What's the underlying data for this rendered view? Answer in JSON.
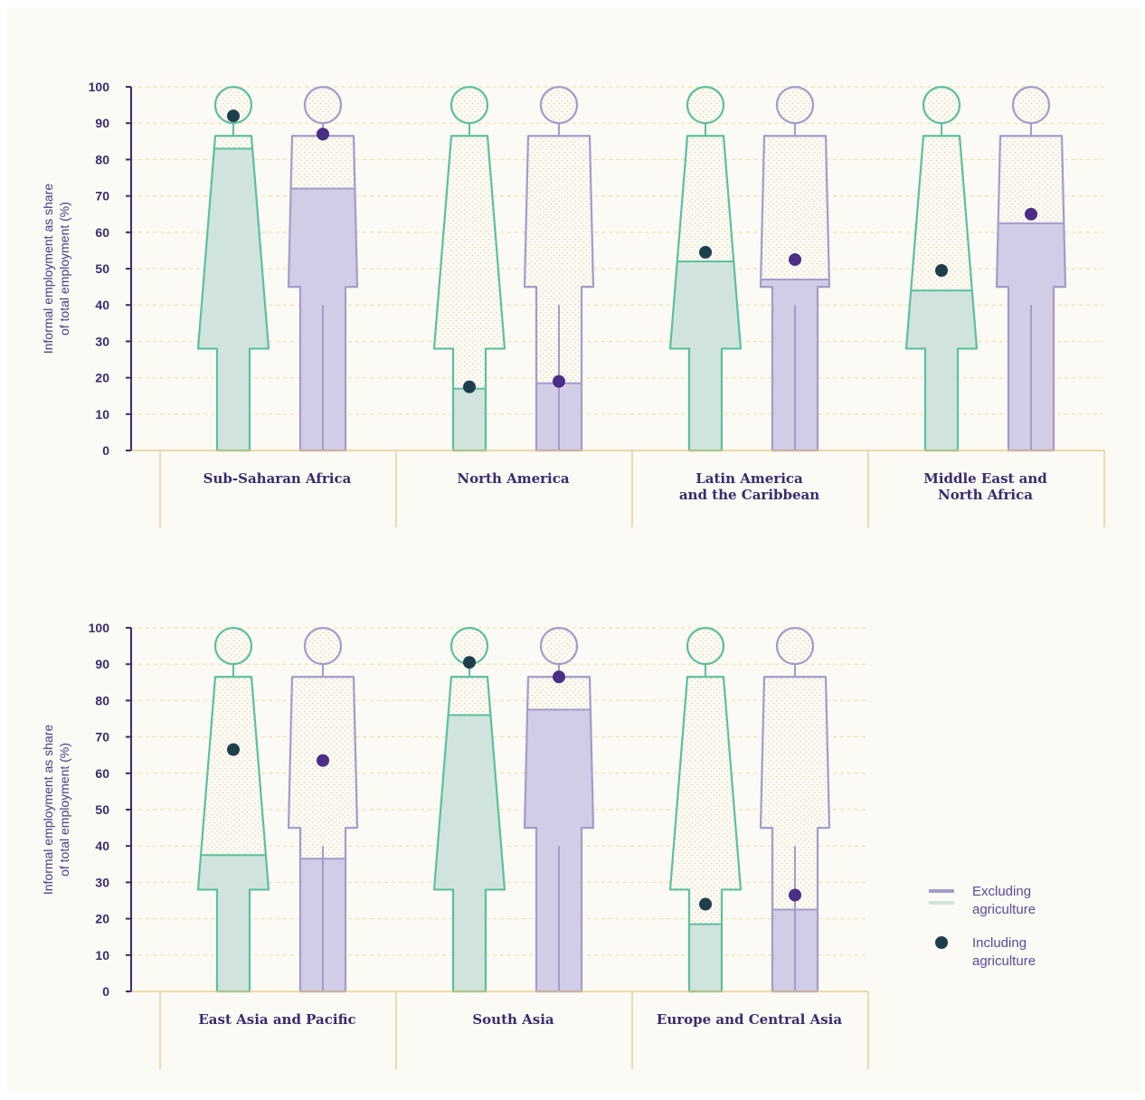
{
  "chart_data": [
    {
      "type": "pictogram",
      "yrange": [
        0,
        100
      ],
      "yticks": [
        0,
        10,
        20,
        30,
        40,
        50,
        60,
        70,
        80,
        90,
        100
      ],
      "ylabel": "Informal employment as share of total employment (%)",
      "categories": [
        "Sub-Saharan Africa",
        "North America",
        "Latin America and the Caribbean",
        "Middle East and North Africa"
      ],
      "category_lines": [
        [
          "Sub-Saharan Africa"
        ],
        [
          "North America"
        ],
        [
          "Latin America",
          "and the Caribbean"
        ],
        [
          "Middle East and",
          "North Africa"
        ]
      ],
      "series": [
        {
          "gender": "women",
          "excluding_agriculture": [
            83,
            17,
            52,
            44
          ],
          "including_agriculture": [
            92,
            17.5,
            54.5,
            49.5
          ]
        },
        {
          "gender": "men",
          "excluding_agriculture": [
            72,
            18.5,
            47,
            62.5
          ],
          "including_agriculture": [
            87,
            19,
            52.5,
            65
          ]
        }
      ]
    },
    {
      "type": "pictogram",
      "yrange": [
        0,
        100
      ],
      "yticks": [
        0,
        10,
        20,
        30,
        40,
        50,
        60,
        70,
        80,
        90,
        100
      ],
      "ylabel": "Informal employment as share of total employment (%)",
      "categories": [
        "East Asia and Pacific",
        "South Asia",
        "Europe and Central Asia"
      ],
      "category_lines": [
        [
          "East Asia and Pacific"
        ],
        [
          "South Asia"
        ],
        [
          "Europe and Central Asia"
        ]
      ],
      "series": [
        {
          "gender": "women",
          "excluding_agriculture": [
            37.5,
            76,
            18.5
          ],
          "including_agriculture": [
            66.5,
            90.5,
            24
          ]
        },
        {
          "gender": "men",
          "excluding_agriculture": [
            36.5,
            77.5,
            22.5
          ],
          "including_agriculture": [
            63.5,
            86.5,
            26.5
          ]
        }
      ]
    }
  ],
  "legend": {
    "excluding_label_1": "Excluding",
    "excluding_label_2": "agriculture",
    "including_label_1": "Including",
    "including_label_2": "agriculture"
  },
  "colors": {
    "women_stroke": "#5cbf9e",
    "women_fill": "#d0e4dd",
    "women_dot": "#1d3f4c",
    "men_stroke": "#a59acb",
    "men_fill": "#d2cde6",
    "men_dot": "#4b2e86",
    "axis": "#3b2b6e",
    "grid": "#f1dc9c",
    "frame": "#e6c47c",
    "background": "#fbfaf5"
  }
}
